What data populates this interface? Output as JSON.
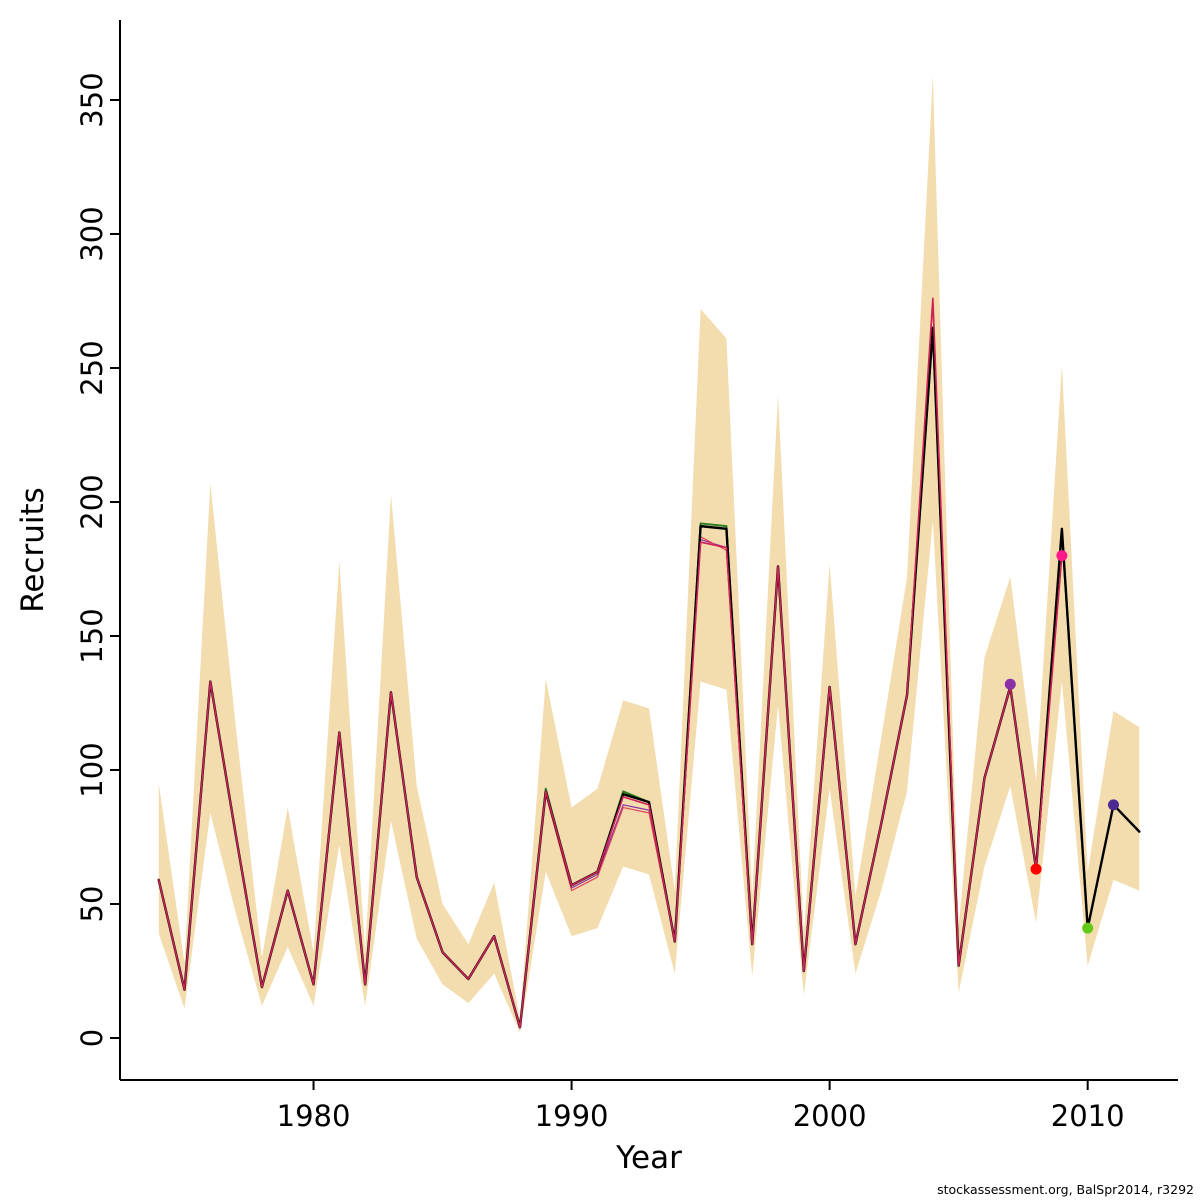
{
  "chart_data": {
    "type": "line",
    "title": "",
    "xlabel": "Year",
    "ylabel": "Recruits",
    "footer": "stockassessment.org, BalSpr2014, r3292",
    "grid": false,
    "legend": "none",
    "xlim": [
      1972.5,
      2013.5
    ],
    "ylim": [
      0,
      360
    ],
    "xticks": [
      1980,
      1990,
      2000,
      2010
    ],
    "yticks": [
      0,
      50,
      100,
      150,
      200,
      250,
      300,
      350
    ],
    "years": [
      1974,
      1975,
      1976,
      1977,
      1978,
      1979,
      1980,
      1981,
      1982,
      1983,
      1984,
      1985,
      1986,
      1987,
      1988,
      1989,
      1990,
      1991,
      1992,
      1993,
      1994,
      1995,
      1996,
      1997,
      1998,
      1999,
      2000,
      2001,
      2002,
      2003,
      2004,
      2005,
      2006,
      2007,
      2008,
      2009,
      2010,
      2011,
      2012
    ],
    "band": {
      "name": "confidence-band",
      "color": "#F3DCAE",
      "upper": [
        95,
        28,
        207,
        115,
        30,
        86,
        32,
        178,
        32,
        203,
        94,
        50,
        35,
        58,
        7,
        134,
        86,
        93,
        126,
        123,
        55,
        272,
        261,
        53,
        240,
        39,
        177,
        53,
        112,
        172,
        359,
        42,
        142,
        172,
        96,
        251,
        62,
        122,
        116
      ],
      "lower": [
        39,
        11,
        84,
        46,
        12,
        34,
        12,
        72,
        12,
        81,
        37,
        20,
        13,
        24,
        2,
        62,
        38,
        41,
        64,
        61,
        24,
        133,
        130,
        23,
        124,
        16,
        93,
        24,
        55,
        92,
        193,
        17,
        64,
        94,
        43,
        133,
        27,
        59,
        55
      ]
    },
    "series": [
      {
        "name": "retro-peel-2007-purple",
        "color": "#8B2FA8",
        "width": 1.2,
        "start_year": 1974,
        "values": [
          59,
          18,
          133,
          75,
          19,
          55,
          20,
          114,
          20,
          129,
          60,
          32,
          22,
          38,
          4,
          91,
          56,
          61,
          87,
          85,
          36,
          186,
          183,
          35,
          175,
          25,
          130,
          35,
          80,
          128,
          275,
          27,
          97,
          132
        ]
      },
      {
        "name": "retro-peel-2008-red",
        "color": "#E0485C",
        "width": 1.2,
        "start_year": 1974,
        "values": [
          59,
          18,
          133,
          75,
          19,
          55,
          20,
          114,
          20,
          129,
          60,
          32,
          22,
          38,
          4,
          91,
          55,
          60,
          86,
          84,
          36,
          187,
          182,
          35,
          175,
          25,
          130,
          35,
          80,
          128,
          274,
          27,
          97,
          130,
          63
        ]
      },
      {
        "name": "retro-peel-2010-green",
        "color": "#2D7F1E",
        "width": 2.0,
        "start_year": 1974,
        "values": [
          59,
          18,
          133,
          75,
          19,
          55,
          20,
          114,
          20,
          129,
          60,
          32,
          22,
          38,
          4,
          93,
          57,
          62,
          92,
          88,
          36,
          192,
          191,
          35,
          176,
          25,
          131,
          35,
          80,
          128,
          265,
          27,
          97,
          131,
          63,
          189,
          41
        ]
      },
      {
        "name": "retro-peel-2011-navy",
        "color": "#221A66",
        "width": 1.6,
        "start_year": 1974,
        "values": [
          59,
          18,
          133,
          75,
          19,
          55,
          20,
          114,
          20,
          129,
          60,
          32,
          22,
          38,
          4,
          92,
          57,
          62,
          91,
          88,
          36,
          191,
          190,
          35,
          176,
          25,
          131,
          35,
          80,
          128,
          265,
          27,
          97,
          131,
          63,
          190,
          41,
          87
        ]
      },
      {
        "name": "final-run-black",
        "color": "#000000",
        "width": 2.4,
        "start_year": 1974,
        "values": [
          59,
          18,
          133,
          75,
          19,
          55,
          20,
          114,
          20,
          129,
          60,
          32,
          22,
          38,
          4,
          92,
          57,
          62,
          91,
          88,
          36,
          191,
          190,
          35,
          176,
          25,
          131,
          35,
          80,
          128,
          265,
          27,
          97,
          131,
          63,
          190,
          41,
          87,
          77
        ]
      },
      {
        "name": "retro-peel-2009-crimson",
        "color": "#CE2257",
        "width": 1.6,
        "start_year": 1974,
        "values": [
          59,
          18,
          133,
          75,
          19,
          55,
          20,
          114,
          20,
          129,
          60,
          32,
          22,
          38,
          4,
          92,
          57,
          62,
          90,
          87,
          36,
          185,
          183,
          35,
          176,
          25,
          131,
          35,
          80,
          128,
          276,
          27,
          97,
          131,
          63,
          180
        ]
      }
    ],
    "points": [
      {
        "year": 2007,
        "value": 132,
        "color": "#8B2FA8"
      },
      {
        "year": 2008,
        "value": 63,
        "color": "#FF0000"
      },
      {
        "year": 2009,
        "value": 180,
        "color": "#FF1A8C"
      },
      {
        "year": 2010,
        "value": 41,
        "color": "#63C919"
      },
      {
        "year": 2011,
        "value": 87,
        "color": "#4B2991"
      }
    ]
  }
}
